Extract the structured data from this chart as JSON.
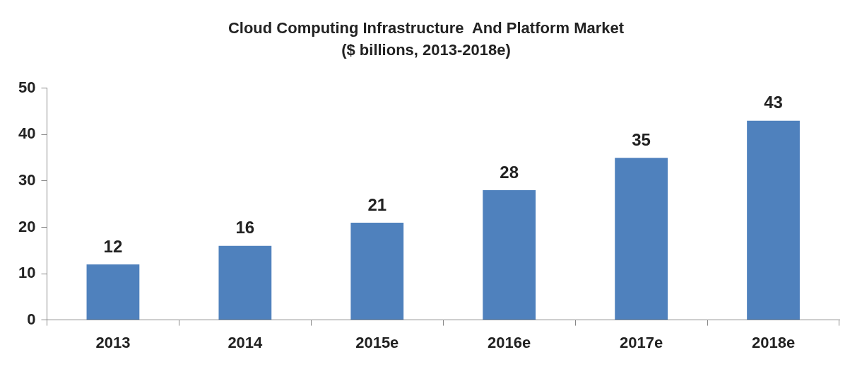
{
  "chart_data": {
    "type": "bar",
    "title": "Cloud Computing Infrastructure  And Platform Market",
    "subtitle": "($ billions, 2013-2018e)",
    "categories": [
      "2013",
      "2014",
      "2015e",
      "2016e",
      "2017e",
      "2018e"
    ],
    "values": [
      12,
      16,
      21,
      28,
      35,
      43
    ],
    "color": "#4f81bd",
    "ylim": [
      0,
      50
    ],
    "yticks": [
      0,
      10,
      20,
      30,
      40,
      50
    ],
    "grid": false,
    "data_labels": true
  }
}
